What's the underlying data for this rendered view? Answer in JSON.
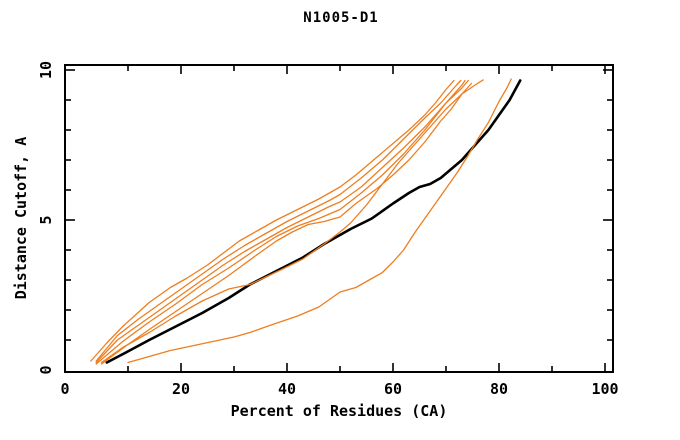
{
  "window": {
    "background": "#ffffff"
  },
  "chart_data": {
    "type": "line",
    "title": "N1005-D1",
    "xlabel": "Percent of Residues (CA)",
    "ylabel": "Distance Cutoff, A",
    "xlim": [
      0,
      100
    ],
    "ylim": [
      0,
      10
    ],
    "grid": false,
    "legend": "none",
    "x_major_ticks": [
      20,
      40,
      60,
      80,
      100
    ],
    "x_minor_ticks": [
      10,
      30,
      50,
      70,
      90
    ],
    "y_major_ticks": [
      5,
      10
    ],
    "y_minor_ticks": [
      1,
      2,
      3,
      4,
      6,
      7,
      8,
      9
    ],
    "x_tick_labels": [
      {
        "value": 0,
        "label": "0"
      },
      {
        "value": 20,
        "label": "20"
      },
      {
        "value": 40,
        "label": "40"
      },
      {
        "value": 60,
        "label": "60"
      },
      {
        "value": 80,
        "label": "80"
      },
      {
        "value": 100,
        "label": "100"
      }
    ],
    "y_tick_labels": [
      {
        "value": 0,
        "label": "0"
      },
      {
        "value": 5,
        "label": "5"
      },
      {
        "value": 10,
        "label": "10"
      }
    ],
    "colors": {
      "reference_curve": "#000000",
      "model_curves": "#ee7e1f"
    },
    "series": [
      {
        "name": "black-reference-curve",
        "color": "#000000",
        "width": 2.6,
        "points": [
          [
            6,
            0.25
          ],
          [
            10,
            0.62
          ],
          [
            14,
            1.0
          ],
          [
            19,
            1.45
          ],
          [
            24,
            1.9
          ],
          [
            29,
            2.4
          ],
          [
            33,
            2.85
          ],
          [
            38,
            3.3
          ],
          [
            43,
            3.75
          ],
          [
            47,
            4.2
          ],
          [
            52,
            4.7
          ],
          [
            56,
            5.05
          ],
          [
            60,
            5.55
          ],
          [
            63,
            5.9
          ],
          [
            65,
            6.1
          ],
          [
            67,
            6.2
          ],
          [
            69,
            6.4
          ],
          [
            71,
            6.7
          ],
          [
            73,
            7.0
          ],
          [
            75.5,
            7.5
          ],
          [
            78,
            8.0
          ],
          [
            80,
            8.5
          ],
          [
            82,
            9.0
          ],
          [
            84,
            9.65
          ]
        ]
      },
      {
        "name": "orange-curve-1",
        "color": "#ee7e1f",
        "width": 1.3,
        "points": [
          [
            3,
            0.3
          ],
          [
            6,
            0.9
          ],
          [
            9,
            1.45
          ],
          [
            14,
            2.25
          ],
          [
            18,
            2.75
          ],
          [
            21,
            3.05
          ],
          [
            25,
            3.5
          ],
          [
            28,
            3.9
          ],
          [
            31,
            4.3
          ],
          [
            35,
            4.7
          ],
          [
            38,
            5.0
          ],
          [
            42,
            5.35
          ],
          [
            46,
            5.7
          ],
          [
            50,
            6.1
          ],
          [
            53,
            6.5
          ],
          [
            57,
            7.1
          ],
          [
            60,
            7.55
          ],
          [
            63,
            8.0
          ],
          [
            66,
            8.5
          ],
          [
            68,
            8.9
          ],
          [
            70,
            9.35
          ],
          [
            71.5,
            9.65
          ]
        ]
      },
      {
        "name": "orange-curve-2",
        "color": "#ee7e1f",
        "width": 1.3,
        "points": [
          [
            4,
            0.3
          ],
          [
            8,
            1.15
          ],
          [
            12,
            1.7
          ],
          [
            16,
            2.2
          ],
          [
            20,
            2.7
          ],
          [
            24,
            3.2
          ],
          [
            28,
            3.7
          ],
          [
            32,
            4.15
          ],
          [
            36,
            4.55
          ],
          [
            40,
            4.95
          ],
          [
            44,
            5.3
          ],
          [
            48,
            5.65
          ],
          [
            50,
            5.85
          ],
          [
            54,
            6.4
          ],
          [
            58,
            7.0
          ],
          [
            62,
            7.7
          ],
          [
            66,
            8.4
          ],
          [
            69,
            8.9
          ],
          [
            72,
            9.5
          ],
          [
            72.8,
            9.65
          ]
        ]
      },
      {
        "name": "orange-curve-3",
        "color": "#ee7e1f",
        "width": 1.3,
        "points": [
          [
            4,
            0.25
          ],
          [
            8,
            1.0
          ],
          [
            12,
            1.5
          ],
          [
            16,
            2.0
          ],
          [
            20,
            2.5
          ],
          [
            24,
            3.0
          ],
          [
            28,
            3.5
          ],
          [
            32,
            3.95
          ],
          [
            36,
            4.35
          ],
          [
            40,
            4.75
          ],
          [
            44,
            5.1
          ],
          [
            48,
            5.45
          ],
          [
            50,
            5.6
          ],
          [
            54,
            6.1
          ],
          [
            58,
            6.75
          ],
          [
            62,
            7.4
          ],
          [
            66,
            8.1
          ],
          [
            70,
            8.9
          ],
          [
            73,
            9.5
          ],
          [
            73.6,
            9.65
          ]
        ]
      },
      {
        "name": "orange-curve-4",
        "color": "#ee7e1f",
        "width": 1.3,
        "points": [
          [
            4,
            0.2
          ],
          [
            9,
            0.95
          ],
          [
            14,
            1.6
          ],
          [
            19,
            2.2
          ],
          [
            24,
            2.85
          ],
          [
            29,
            3.4
          ],
          [
            34,
            4.0
          ],
          [
            38,
            4.45
          ],
          [
            42,
            4.8
          ],
          [
            46,
            5.05
          ],
          [
            50,
            5.35
          ],
          [
            54,
            5.9
          ],
          [
            58,
            6.5
          ],
          [
            62,
            7.2
          ],
          [
            66,
            8.0
          ],
          [
            70,
            8.9
          ],
          [
            73,
            9.4
          ],
          [
            74.2,
            9.65
          ]
        ]
      },
      {
        "name": "orange-curve-5",
        "color": "#ee7e1f",
        "width": 1.3,
        "points": [
          [
            5,
            0.2
          ],
          [
            10,
            0.85
          ],
          [
            14,
            1.35
          ],
          [
            19,
            1.95
          ],
          [
            24,
            2.55
          ],
          [
            29,
            3.15
          ],
          [
            34,
            3.8
          ],
          [
            38,
            4.3
          ],
          [
            41,
            4.6
          ],
          [
            44,
            4.85
          ],
          [
            47,
            4.95
          ],
          [
            50,
            5.1
          ],
          [
            53,
            5.55
          ],
          [
            57,
            6.05
          ],
          [
            60,
            6.5
          ],
          [
            63,
            7.0
          ],
          [
            66,
            7.6
          ],
          [
            69,
            8.3
          ],
          [
            71,
            8.7
          ],
          [
            73,
            9.2
          ],
          [
            74.8,
            9.55
          ]
        ]
      },
      {
        "name": "orange-curve-6",
        "color": "#ee7e1f",
        "width": 1.3,
        "points": [
          [
            5,
            0.25
          ],
          [
            9,
            0.75
          ],
          [
            14,
            1.25
          ],
          [
            19,
            1.8
          ],
          [
            24,
            2.3
          ],
          [
            29,
            2.7
          ],
          [
            33,
            2.85
          ],
          [
            36,
            3.1
          ],
          [
            39,
            3.35
          ],
          [
            43,
            3.7
          ],
          [
            47,
            4.2
          ],
          [
            50,
            4.6
          ],
          [
            52,
            4.9
          ],
          [
            55,
            5.5
          ],
          [
            58,
            6.2
          ],
          [
            61,
            6.9
          ],
          [
            64,
            7.5
          ],
          [
            67,
            8.1
          ],
          [
            70,
            8.7
          ],
          [
            73,
            9.2
          ],
          [
            75.5,
            9.5
          ],
          [
            77,
            9.67
          ]
        ]
      },
      {
        "name": "orange-curve-7-low-outlier",
        "color": "#ee7e1f",
        "width": 1.3,
        "points": [
          [
            10,
            0.25
          ],
          [
            14,
            0.45
          ],
          [
            18,
            0.65
          ],
          [
            22,
            0.8
          ],
          [
            26,
            0.95
          ],
          [
            30,
            1.1
          ],
          [
            33,
            1.25
          ],
          [
            37,
            1.5
          ],
          [
            42,
            1.8
          ],
          [
            46,
            2.1
          ],
          [
            50,
            2.6
          ],
          [
            53,
            2.75
          ],
          [
            56,
            3.05
          ],
          [
            58,
            3.25
          ],
          [
            60,
            3.6
          ],
          [
            62,
            4.0
          ],
          [
            64,
            4.55
          ],
          [
            66,
            5.05
          ],
          [
            68,
            5.55
          ],
          [
            70,
            6.05
          ],
          [
            72,
            6.55
          ],
          [
            74,
            7.1
          ],
          [
            76,
            7.7
          ],
          [
            78,
            8.25
          ],
          [
            80,
            8.95
          ],
          [
            81.5,
            9.4
          ],
          [
            82.3,
            9.7
          ]
        ]
      }
    ]
  }
}
